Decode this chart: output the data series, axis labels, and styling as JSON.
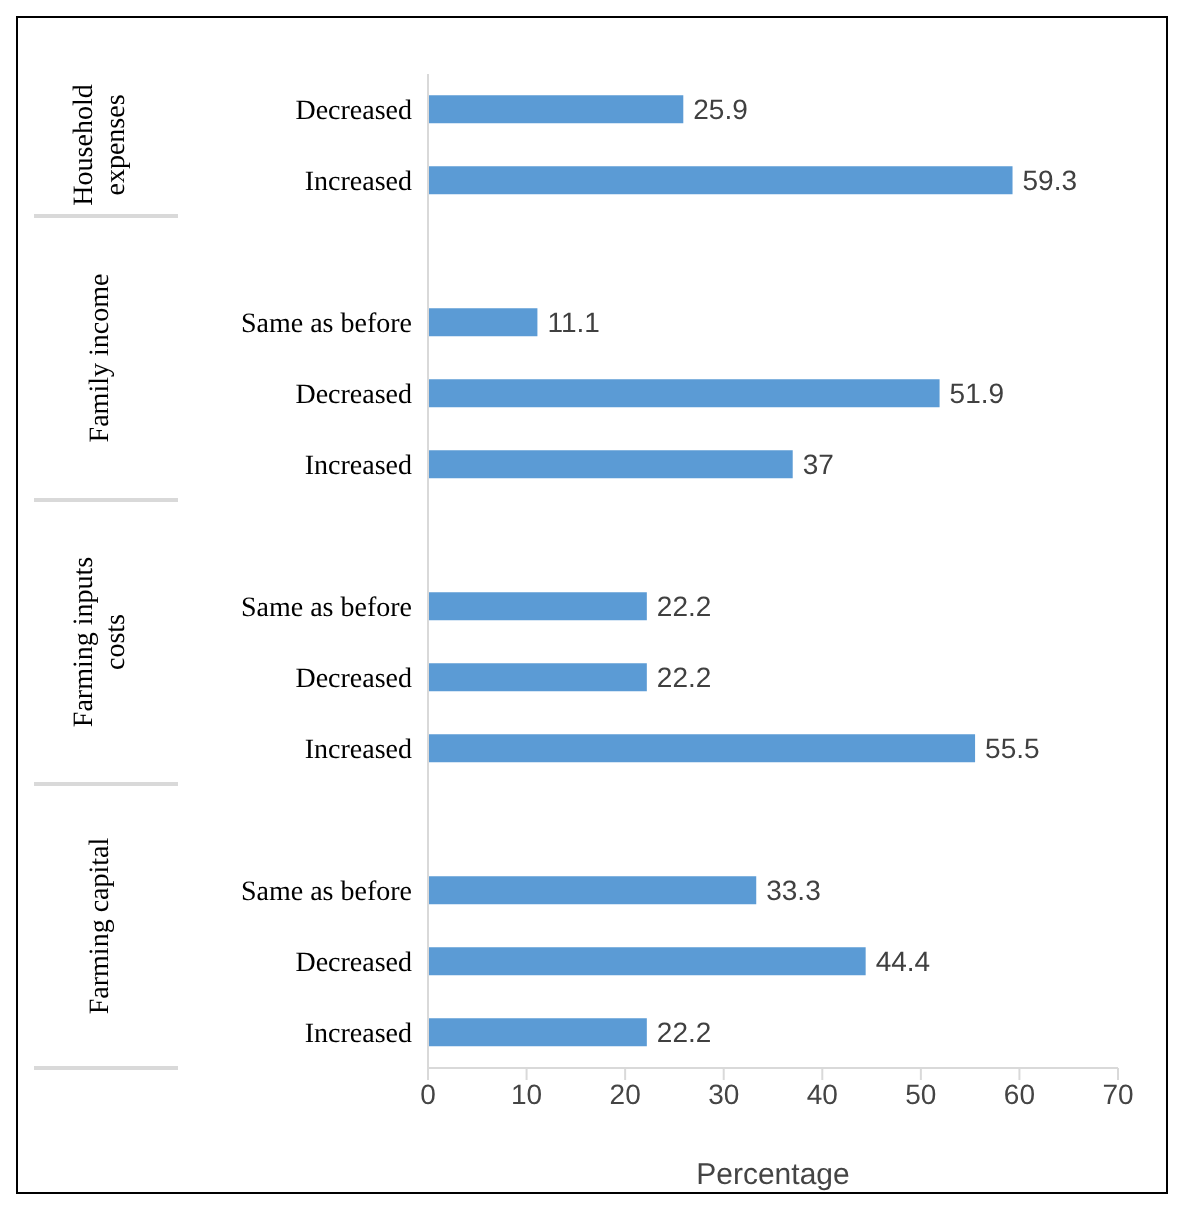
{
  "chart_data": {
    "type": "bar",
    "orientation": "horizontal",
    "xlabel": "Percentage",
    "categories": [
      "Decreased",
      "Increased",
      null,
      "Same as before",
      "Decreased",
      "Increased",
      null,
      "Same as before",
      "Decreased",
      "Increased",
      null,
      "Same as before",
      "Decreased",
      "Increased"
    ],
    "values": [
      25.9,
      59.3,
      null,
      11.1,
      51.9,
      37,
      null,
      22.2,
      22.2,
      55.5,
      null,
      33.3,
      44.4,
      22.2
    ],
    "color": "#5b9bd5",
    "xlim": [
      0,
      70
    ],
    "xticks": [
      0,
      10,
      20,
      30,
      40,
      50,
      60,
      70
    ],
    "grid": false,
    "legend": false,
    "data_labels": true,
    "annotations": [
      "Household expenses",
      "Family income",
      "Farming inputs costs",
      "Farming capital"
    ]
  }
}
